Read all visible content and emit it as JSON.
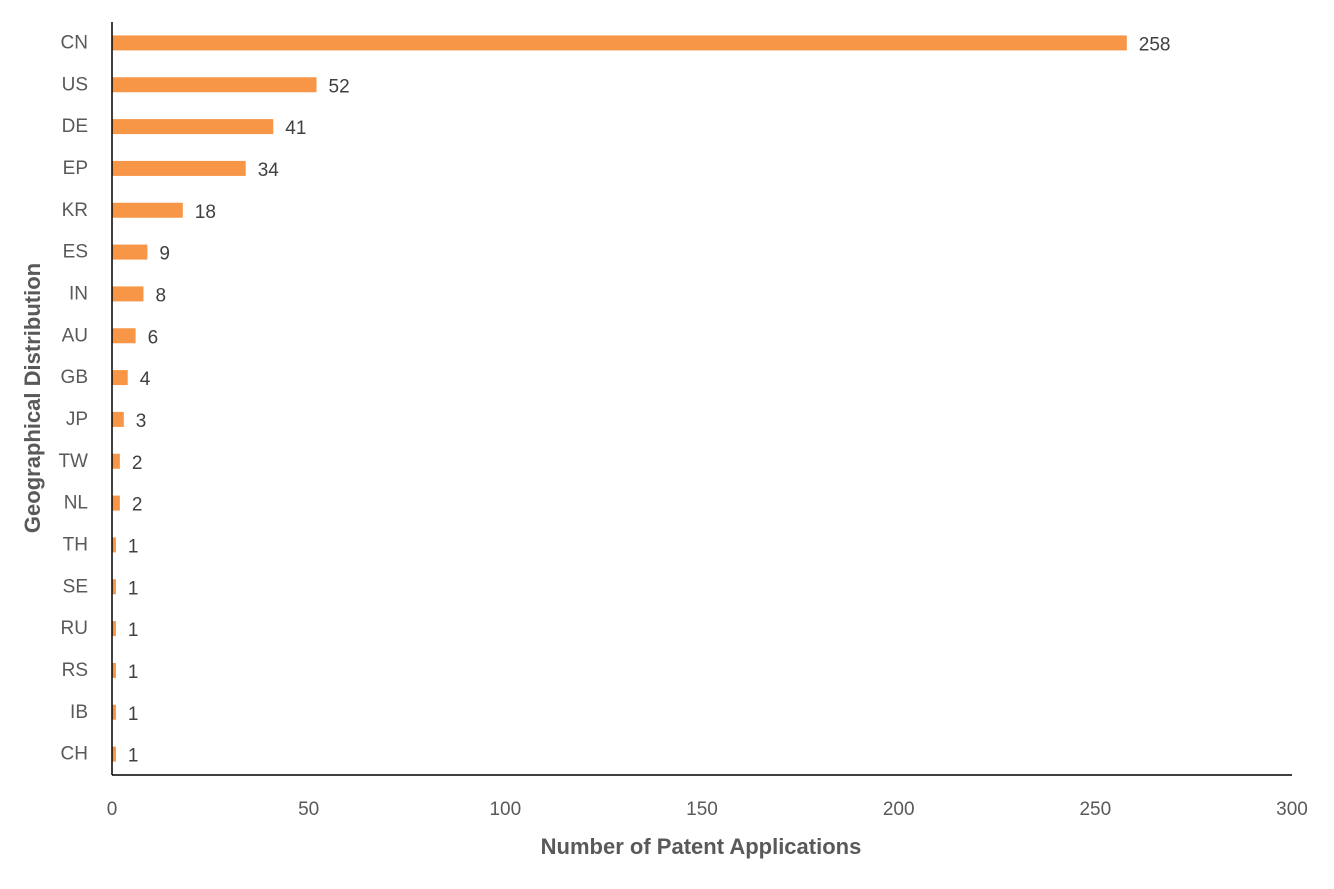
{
  "chart_data": {
    "type": "bar",
    "orientation": "horizontal",
    "categories": [
      "CN",
      "US",
      "DE",
      "EP",
      "KR",
      "ES",
      "IN",
      "AU",
      "GB",
      "JP",
      "TW",
      "NL",
      "TH",
      "SE",
      "RU",
      "RS",
      "IB",
      "CH"
    ],
    "values": [
      258,
      52,
      41,
      34,
      18,
      9,
      8,
      6,
      4,
      3,
      2,
      2,
      1,
      1,
      1,
      1,
      1,
      1
    ],
    "data_labels": [
      "258",
      "52",
      "41",
      "34",
      "18",
      "9",
      "8",
      "6",
      "4",
      "3",
      "2",
      "2",
      "1",
      "1",
      "1",
      "1",
      "1",
      "1"
    ],
    "xlabel": "Number of Patent Applications",
    "ylabel": "Geographical Distribution",
    "xlim": [
      0,
      300
    ],
    "xticks": [
      0,
      50,
      100,
      150,
      200,
      250,
      300
    ],
    "xtick_labels": [
      "0",
      "50",
      "100",
      "150",
      "200",
      "250",
      "300"
    ],
    "grid": false,
    "legend": "none",
    "bar_color": "#F79646",
    "axis_color": "#000000"
  }
}
